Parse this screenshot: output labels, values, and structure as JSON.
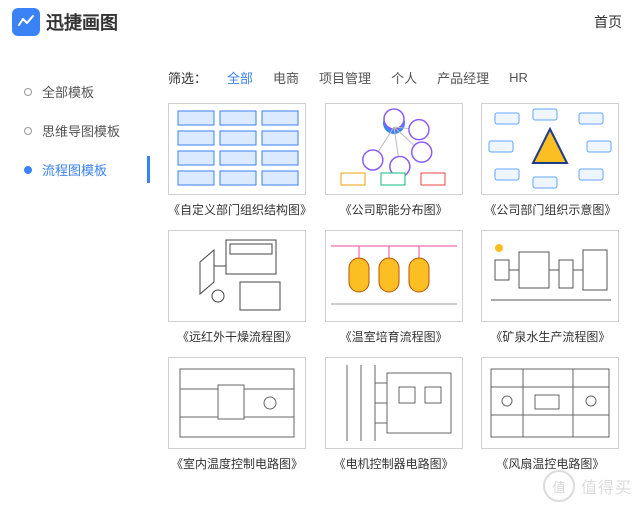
{
  "brand": {
    "name": "迅捷画图",
    "logo_bg": "#3b82f6"
  },
  "nav": {
    "home": "首页"
  },
  "sidebar": {
    "items": [
      {
        "label": "全部模板",
        "active": false
      },
      {
        "label": "思维导图模板",
        "active": false
      },
      {
        "label": "流程图模板",
        "active": true
      }
    ]
  },
  "filter": {
    "label": "筛选：",
    "items": [
      {
        "label": "全部",
        "active": true
      },
      {
        "label": "电商",
        "active": false
      },
      {
        "label": "项目管理",
        "active": false
      },
      {
        "label": "个人",
        "active": false
      },
      {
        "label": "产品经理",
        "active": false
      },
      {
        "label": "HR",
        "active": false
      }
    ]
  },
  "templates": [
    {
      "caption": "《自定义部门组织结构图》",
      "style": "org-grid",
      "colors": {
        "box": "#3b82f6",
        "fill": "#dbeafe"
      }
    },
    {
      "caption": "《公司职能分布图》",
      "style": "hub-spoke",
      "colors": {
        "hub": "#3b82f6",
        "node": "#8b5cf6"
      }
    },
    {
      "caption": "《公司部门组织示意图》",
      "style": "triangle-cloud",
      "colors": {
        "tri": "#1e3a8a",
        "tri_fill": "#fbbf24",
        "box": "#60a5fa"
      }
    },
    {
      "caption": "《远红外干燥流程图》",
      "style": "machinery",
      "colors": {
        "line": "#444"
      }
    },
    {
      "caption": "《温室培育流程图》",
      "style": "tanks",
      "colors": {
        "tank": "#fbbf24",
        "line": "#ec4899"
      }
    },
    {
      "caption": "《矿泉水生产流程图》",
      "style": "plant",
      "colors": {
        "line": "#555"
      }
    },
    {
      "caption": "《室内温度控制电路图》",
      "style": "circuit",
      "colors": {
        "line": "#666"
      }
    },
    {
      "caption": "《电机控制器电路图》",
      "style": "circuit2",
      "colors": {
        "line": "#666"
      }
    },
    {
      "caption": "《风扇温控电路图》",
      "style": "circuit3",
      "colors": {
        "line": "#666"
      }
    }
  ],
  "watermark": {
    "circle_text": "值",
    "text": "值得买"
  },
  "colors": {
    "primary": "#3b82f6",
    "text": "#333333",
    "muted": "#555555",
    "border": "#d0d0d0"
  }
}
